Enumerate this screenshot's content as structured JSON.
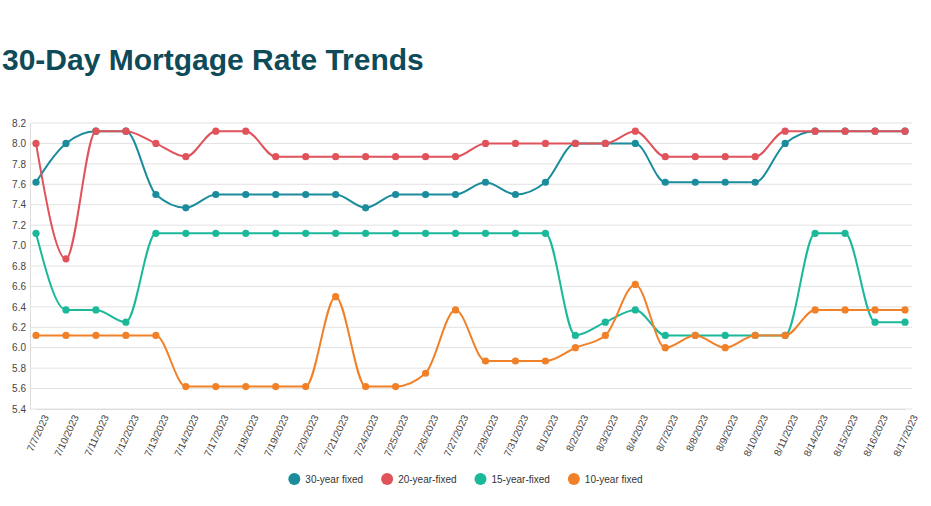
{
  "chart_data": {
    "type": "line",
    "title": "30-Day Mortgage Rate Trends",
    "categories": [
      "7/7/2023",
      "7/10/2023",
      "7/11/2023",
      "7/12/2023",
      "7/13/2023",
      "7/14/2023",
      "7/17/2023",
      "7/18/2023",
      "7/19/2023",
      "7/20/2023",
      "7/21/2023",
      "7/24/2023",
      "7/25/2023",
      "7/26/2023",
      "7/27/2023",
      "7/28/2023",
      "7/31/2023",
      "8/1/2023",
      "8/2/2023",
      "8/3/2023",
      "8/4/2023",
      "8/7/2023",
      "8/8/2023",
      "8/9/2023",
      "8/10/2023",
      "8/11/2023",
      "8/14/2023",
      "8/15/2023",
      "8/16/2023",
      "8/17/2023"
    ],
    "series": [
      {
        "name": "30-year fixed",
        "color": "#1a8c9c",
        "values": [
          7.62,
          8.0,
          8.12,
          8.12,
          7.5,
          7.37,
          7.5,
          7.5,
          7.5,
          7.5,
          7.5,
          7.37,
          7.5,
          7.5,
          7.5,
          7.62,
          7.5,
          7.62,
          8.0,
          8.0,
          8.0,
          7.62,
          7.62,
          7.62,
          7.62,
          8.0,
          8.12,
          8.12,
          8.12,
          8.12
        ]
      },
      {
        "name": "20-year-fixed",
        "color": "#e0535b",
        "values": [
          8.0,
          6.87,
          8.12,
          8.12,
          8.0,
          7.87,
          8.12,
          8.12,
          7.87,
          7.87,
          7.87,
          7.87,
          7.87,
          7.87,
          7.87,
          8.0,
          8.0,
          8.0,
          8.0,
          8.0,
          8.12,
          7.87,
          7.87,
          7.87,
          7.87,
          8.12,
          8.12,
          8.12,
          8.12,
          8.12
        ]
      },
      {
        "name": "15-year-fixed",
        "color": "#1bb89a",
        "values": [
          7.12,
          6.37,
          6.37,
          6.25,
          7.12,
          7.12,
          7.12,
          7.12,
          7.12,
          7.12,
          7.12,
          7.12,
          7.12,
          7.12,
          7.12,
          7.12,
          7.12,
          7.12,
          6.12,
          6.25,
          6.37,
          6.12,
          6.12,
          6.12,
          6.12,
          6.12,
          7.12,
          7.12,
          6.25,
          6.25
        ]
      },
      {
        "name": "10-year fixed",
        "color": "#f08129",
        "values": [
          6.12,
          6.12,
          6.12,
          6.12,
          6.12,
          5.62,
          5.62,
          5.62,
          5.62,
          5.62,
          6.5,
          5.62,
          5.62,
          5.75,
          6.37,
          5.87,
          5.87,
          5.87,
          6.0,
          6.12,
          6.62,
          6.0,
          6.12,
          6.0,
          6.12,
          6.12,
          6.37,
          6.37,
          6.37,
          6.37
        ]
      }
    ],
    "ylim": [
      5.4,
      8.2
    ],
    "yticks": [
      5.4,
      5.6,
      5.8,
      {
        "value": 6,
        "label": "6.0"
      },
      6.2,
      6.4,
      6.6,
      6.8,
      {
        "value": 7,
        "label": "7.0"
      },
      7.2,
      7.4,
      7.6,
      7.8,
      {
        "value": 8,
        "label": "8.0"
      },
      8.2
    ],
    "grid": true,
    "legend": "bottom",
    "marker": "circle",
    "line_style": "solid"
  }
}
